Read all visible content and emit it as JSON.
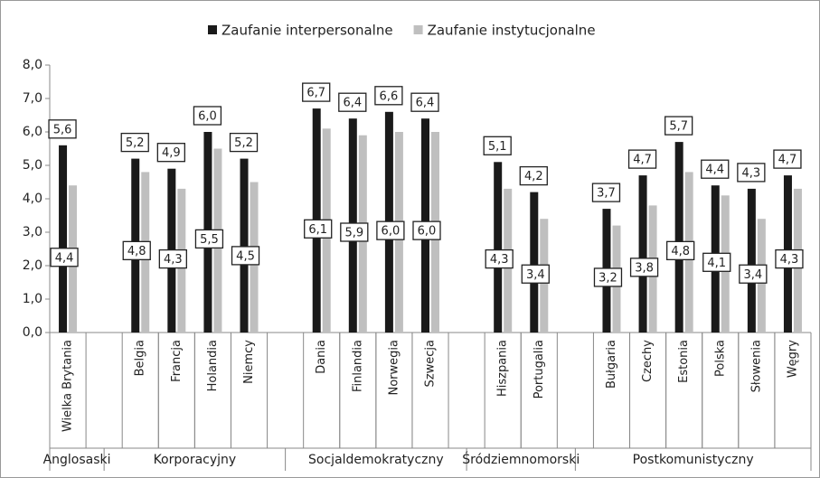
{
  "chart_data": {
    "type": "bar",
    "categories": [
      "Wielka Brytania",
      null,
      "Belgia",
      "Francja",
      "Holandia",
      "Niemcy",
      null,
      "Dania",
      "Finlandia",
      "Norwegia",
      "Szwecja",
      null,
      "Hiszpania",
      "Portugalia",
      null,
      "Bułgaria",
      "Czechy",
      "Estonia",
      "Polska",
      "Słowenia",
      "Węgry"
    ],
    "groups": [
      "Anglosaski",
      "Korporacyjny",
      "Socjaldemokratyczny",
      "Śródziemnomorski",
      "Postkomunistyczny"
    ],
    "series": [
      {
        "name": "Zaufanie interpersonalne",
        "color": "#1a1a1a",
        "values": [
          5.6,
          null,
          5.2,
          4.9,
          6.0,
          5.2,
          null,
          6.7,
          6.4,
          6.6,
          6.4,
          null,
          5.1,
          4.2,
          null,
          3.7,
          4.7,
          5.7,
          4.4,
          4.3,
          4.7
        ],
        "value_labels": [
          "5,6",
          null,
          "5,2",
          "4,9",
          "6,0",
          "5,2",
          null,
          "6,7",
          "6,4",
          "6,6",
          "6,4",
          null,
          "5,1",
          "4,2",
          null,
          "3,7",
          "4,7",
          "5,7",
          "4,4",
          "4,3",
          "4,7"
        ]
      },
      {
        "name": "Zaufanie instytucjonalne",
        "color": "#bfbfbf",
        "values": [
          4.4,
          null,
          4.8,
          4.3,
          5.5,
          4.5,
          null,
          6.1,
          5.9,
          6.0,
          6.0,
          null,
          4.3,
          3.4,
          null,
          3.2,
          3.8,
          4.8,
          4.1,
          3.4,
          4.3
        ],
        "value_labels": [
          "4,4",
          null,
          "4,8",
          "4,3",
          "5,5",
          "4,5",
          null,
          "6,1",
          "5,9",
          "6,0",
          "6,0",
          null,
          "4,3",
          "3,4",
          null,
          "3,2",
          "3,8",
          "4,8",
          "4,1",
          "3,4",
          "4,3"
        ]
      }
    ],
    "ylim": [
      0,
      8
    ],
    "yticks": [
      {
        "value": 0,
        "label": "0,0"
      },
      {
        "value": 1,
        "label": "1,0"
      },
      {
        "value": 2,
        "label": "2,0"
      },
      {
        "value": 3,
        "label": "3,0"
      },
      {
        "value": 4,
        "label": "4,0"
      },
      {
        "value": 5,
        "label": "5,0"
      },
      {
        "value": 6,
        "label": "6,0"
      },
      {
        "value": 7,
        "label": "7,0"
      },
      {
        "value": 8,
        "label": "8,0"
      }
    ],
    "grid": false,
    "legend": "top"
  }
}
